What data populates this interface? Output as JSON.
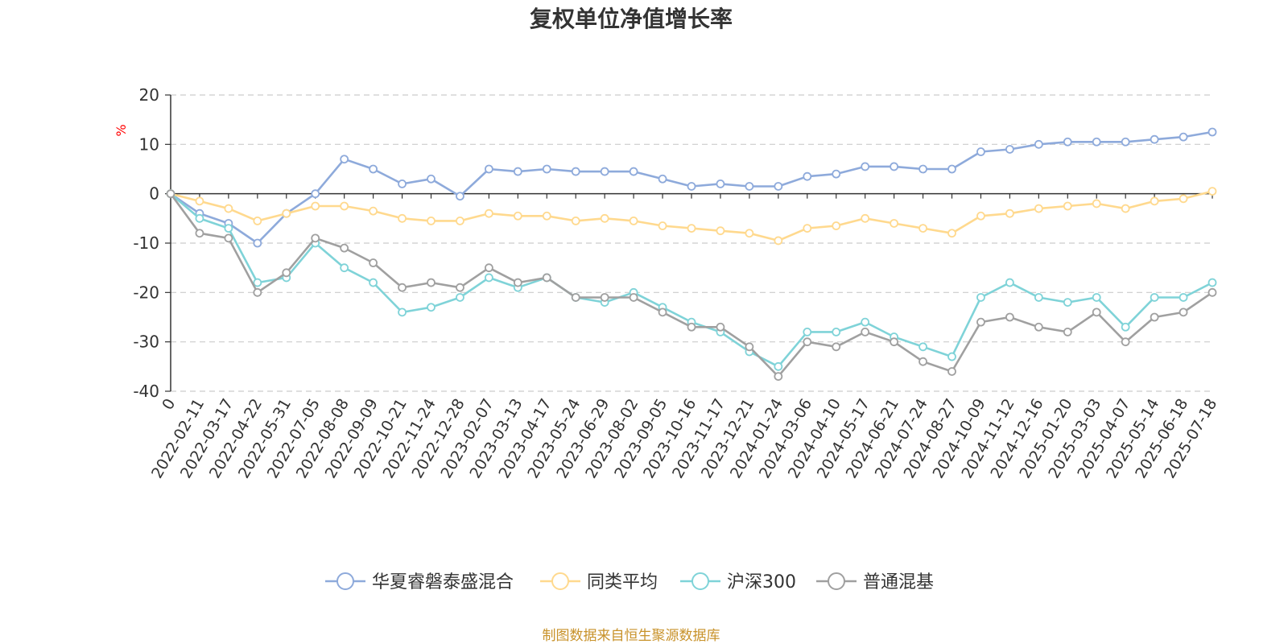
{
  "chart_data": {
    "type": "line",
    "title": "复权单位净值增长率",
    "ylabel": "%",
    "ylim": [
      -40,
      20
    ],
    "yticks": [
      20,
      10,
      0,
      -10,
      -20,
      -30,
      -40
    ],
    "grid": true,
    "legend_position": "bottom",
    "x": [
      "0",
      "2022-02-11",
      "2022-03-17",
      "2022-04-22",
      "2022-05-31",
      "2022-07-05",
      "2022-08-08",
      "2022-09-09",
      "2022-10-21",
      "2022-11-24",
      "2022-12-28",
      "2023-02-07",
      "2023-03-13",
      "2023-04-17",
      "2023-05-24",
      "2023-06-29",
      "2023-08-02",
      "2023-09-05",
      "2023-10-16",
      "2023-11-17",
      "2023-12-21",
      "2024-01-24",
      "2024-03-06",
      "2024-04-10",
      "2024-05-17",
      "2024-06-21",
      "2024-07-24",
      "2024-08-27",
      "2024-10-09",
      "2024-11-12",
      "2024-12-16",
      "2025-01-20",
      "2025-03-03",
      "2025-04-07",
      "2025-05-14",
      "2025-06-18",
      "2025-07-18"
    ],
    "series": [
      {
        "name": "华夏睿磐泰盛混合",
        "color": "#8eaadb",
        "values": [
          0,
          -4,
          -6,
          -10,
          -4,
          0,
          7,
          5,
          2,
          3,
          -0.5,
          5,
          4.5,
          5,
          4.5,
          4.5,
          4.5,
          3,
          1.5,
          2,
          1.5,
          1.5,
          3.5,
          4,
          5.5,
          5.5,
          5,
          5,
          8.5,
          9,
          10,
          10.5,
          10.5,
          10.5,
          11,
          11.5,
          12.5
        ]
      },
      {
        "name": "同类平均",
        "color": "#ffd98e",
        "values": [
          0,
          -1.5,
          -3,
          -5.5,
          -4,
          -2.5,
          -2.5,
          -3.5,
          -5,
          -5.5,
          -5.5,
          -4,
          -4.5,
          -4.5,
          -5.5,
          -5,
          -5.5,
          -6.5,
          -7,
          -7.5,
          -8,
          -9.5,
          -7,
          -6.5,
          -5,
          -6,
          -7,
          -8,
          -4.5,
          -4,
          -3,
          -2.5,
          -2,
          -3,
          -1.5,
          -1,
          0.5
        ]
      },
      {
        "name": "沪深300",
        "color": "#7fd3d8",
        "values": [
          0,
          -5,
          -7,
          -18,
          -17,
          -10,
          -15,
          -18,
          -24,
          -23,
          -21,
          -17,
          -19,
          -17,
          -21,
          -22,
          -20,
          -23,
          -26,
          -28,
          -32,
          -35,
          -28,
          -28,
          -26,
          -29,
          -31,
          -33,
          -21,
          -18,
          -21,
          -22,
          -21,
          -27,
          -21,
          -21,
          -18
        ]
      },
      {
        "name": "普通混基",
        "color": "#a0a0a0",
        "values": [
          0,
          -8,
          -9,
          -20,
          -16,
          -9,
          -11,
          -14,
          -19,
          -18,
          -19,
          -15,
          -18,
          -17,
          -21,
          -21,
          -21,
          -24,
          -27,
          -27,
          -31,
          -37,
          -30,
          -31,
          -28,
          -30,
          -34,
          -36,
          -26,
          -25,
          -27,
          -28,
          -24,
          -30,
          -25,
          -24,
          -20
        ]
      }
    ]
  },
  "source_text": "制图数据来自恒生聚源数据库"
}
